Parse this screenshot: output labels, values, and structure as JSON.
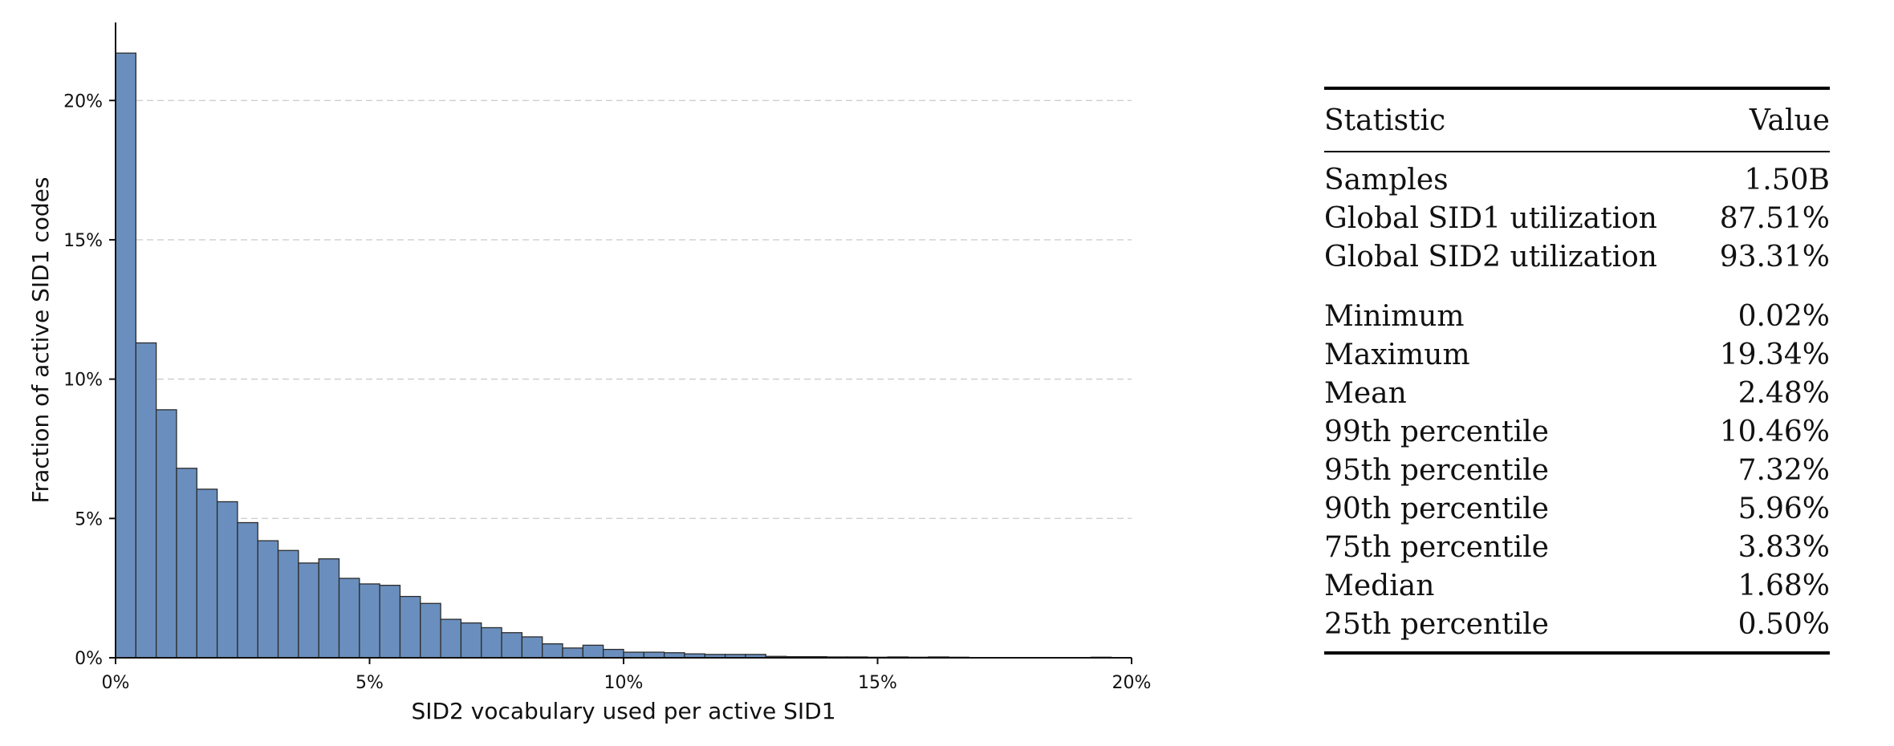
{
  "chart_data": {
    "type": "bar",
    "xlabel": "SID2 vocabulary used per active SID1",
    "ylabel": "Fraction of active SID1 codes",
    "xlim": [
      0,
      20
    ],
    "ylim": [
      0,
      22.8
    ],
    "xticks": [
      0,
      5,
      10,
      15,
      20
    ],
    "xtick_labels": [
      "0%",
      "5%",
      "10%",
      "15%",
      "20%"
    ],
    "yticks": [
      0,
      5,
      10,
      15,
      20
    ],
    "ytick_labels": [
      "0%",
      "5%",
      "10%",
      "15%",
      "20%"
    ],
    "grid": "y-dashed",
    "bin_width": 0.4,
    "bins_start": [
      0,
      0.4,
      0.8,
      1.2,
      1.6,
      2.0,
      2.4,
      2.8,
      3.2,
      3.6,
      4.0,
      4.4,
      4.8,
      5.2,
      5.6,
      6.0,
      6.4,
      6.8,
      7.2,
      7.6,
      8.0,
      8.4,
      8.8,
      9.2,
      9.6,
      10.0,
      10.4,
      10.8,
      11.2,
      11.6,
      12.0,
      12.4,
      12.8,
      13.2,
      13.6,
      14.0,
      14.4,
      14.8,
      15.2,
      15.6,
      16.0,
      16.4,
      16.8,
      17.2,
      17.6,
      18.0,
      18.4,
      18.8,
      19.2
    ],
    "values": [
      21.7,
      11.3,
      8.9,
      6.8,
      6.05,
      5.6,
      4.85,
      4.2,
      3.85,
      3.4,
      3.55,
      2.85,
      2.65,
      2.6,
      2.2,
      1.95,
      1.38,
      1.25,
      1.08,
      0.9,
      0.75,
      0.5,
      0.35,
      0.45,
      0.3,
      0.2,
      0.2,
      0.18,
      0.14,
      0.12,
      0.12,
      0.12,
      0.05,
      0.04,
      0.04,
      0.03,
      0.03,
      0.02,
      0.03,
      0.02,
      0.03,
      0.02,
      0.01,
      0.01,
      0.01,
      0.01,
      0.01,
      0.01,
      0.02
    ]
  },
  "table": {
    "header": {
      "statistic": "Statistic",
      "value": "Value"
    },
    "group1": [
      {
        "label": "Samples",
        "value": "1.50B"
      },
      {
        "label": "Global SID1 utilization",
        "value": "87.51%"
      },
      {
        "label": "Global SID2 utilization",
        "value": "93.31%"
      }
    ],
    "group2": [
      {
        "label": "Minimum",
        "value": "0.02%"
      },
      {
        "label": "Maximum",
        "value": "19.34%"
      },
      {
        "label": "Mean",
        "value": "2.48%"
      },
      {
        "label": "99th percentile",
        "value": "10.46%"
      },
      {
        "label": "95th percentile",
        "value": "7.32%"
      },
      {
        "label": "90th percentile",
        "value": "5.96%"
      },
      {
        "label": "75th percentile",
        "value": "3.83%"
      },
      {
        "label": "Median",
        "value": "1.68%"
      },
      {
        "label": "25th percentile",
        "value": "0.50%"
      }
    ]
  }
}
